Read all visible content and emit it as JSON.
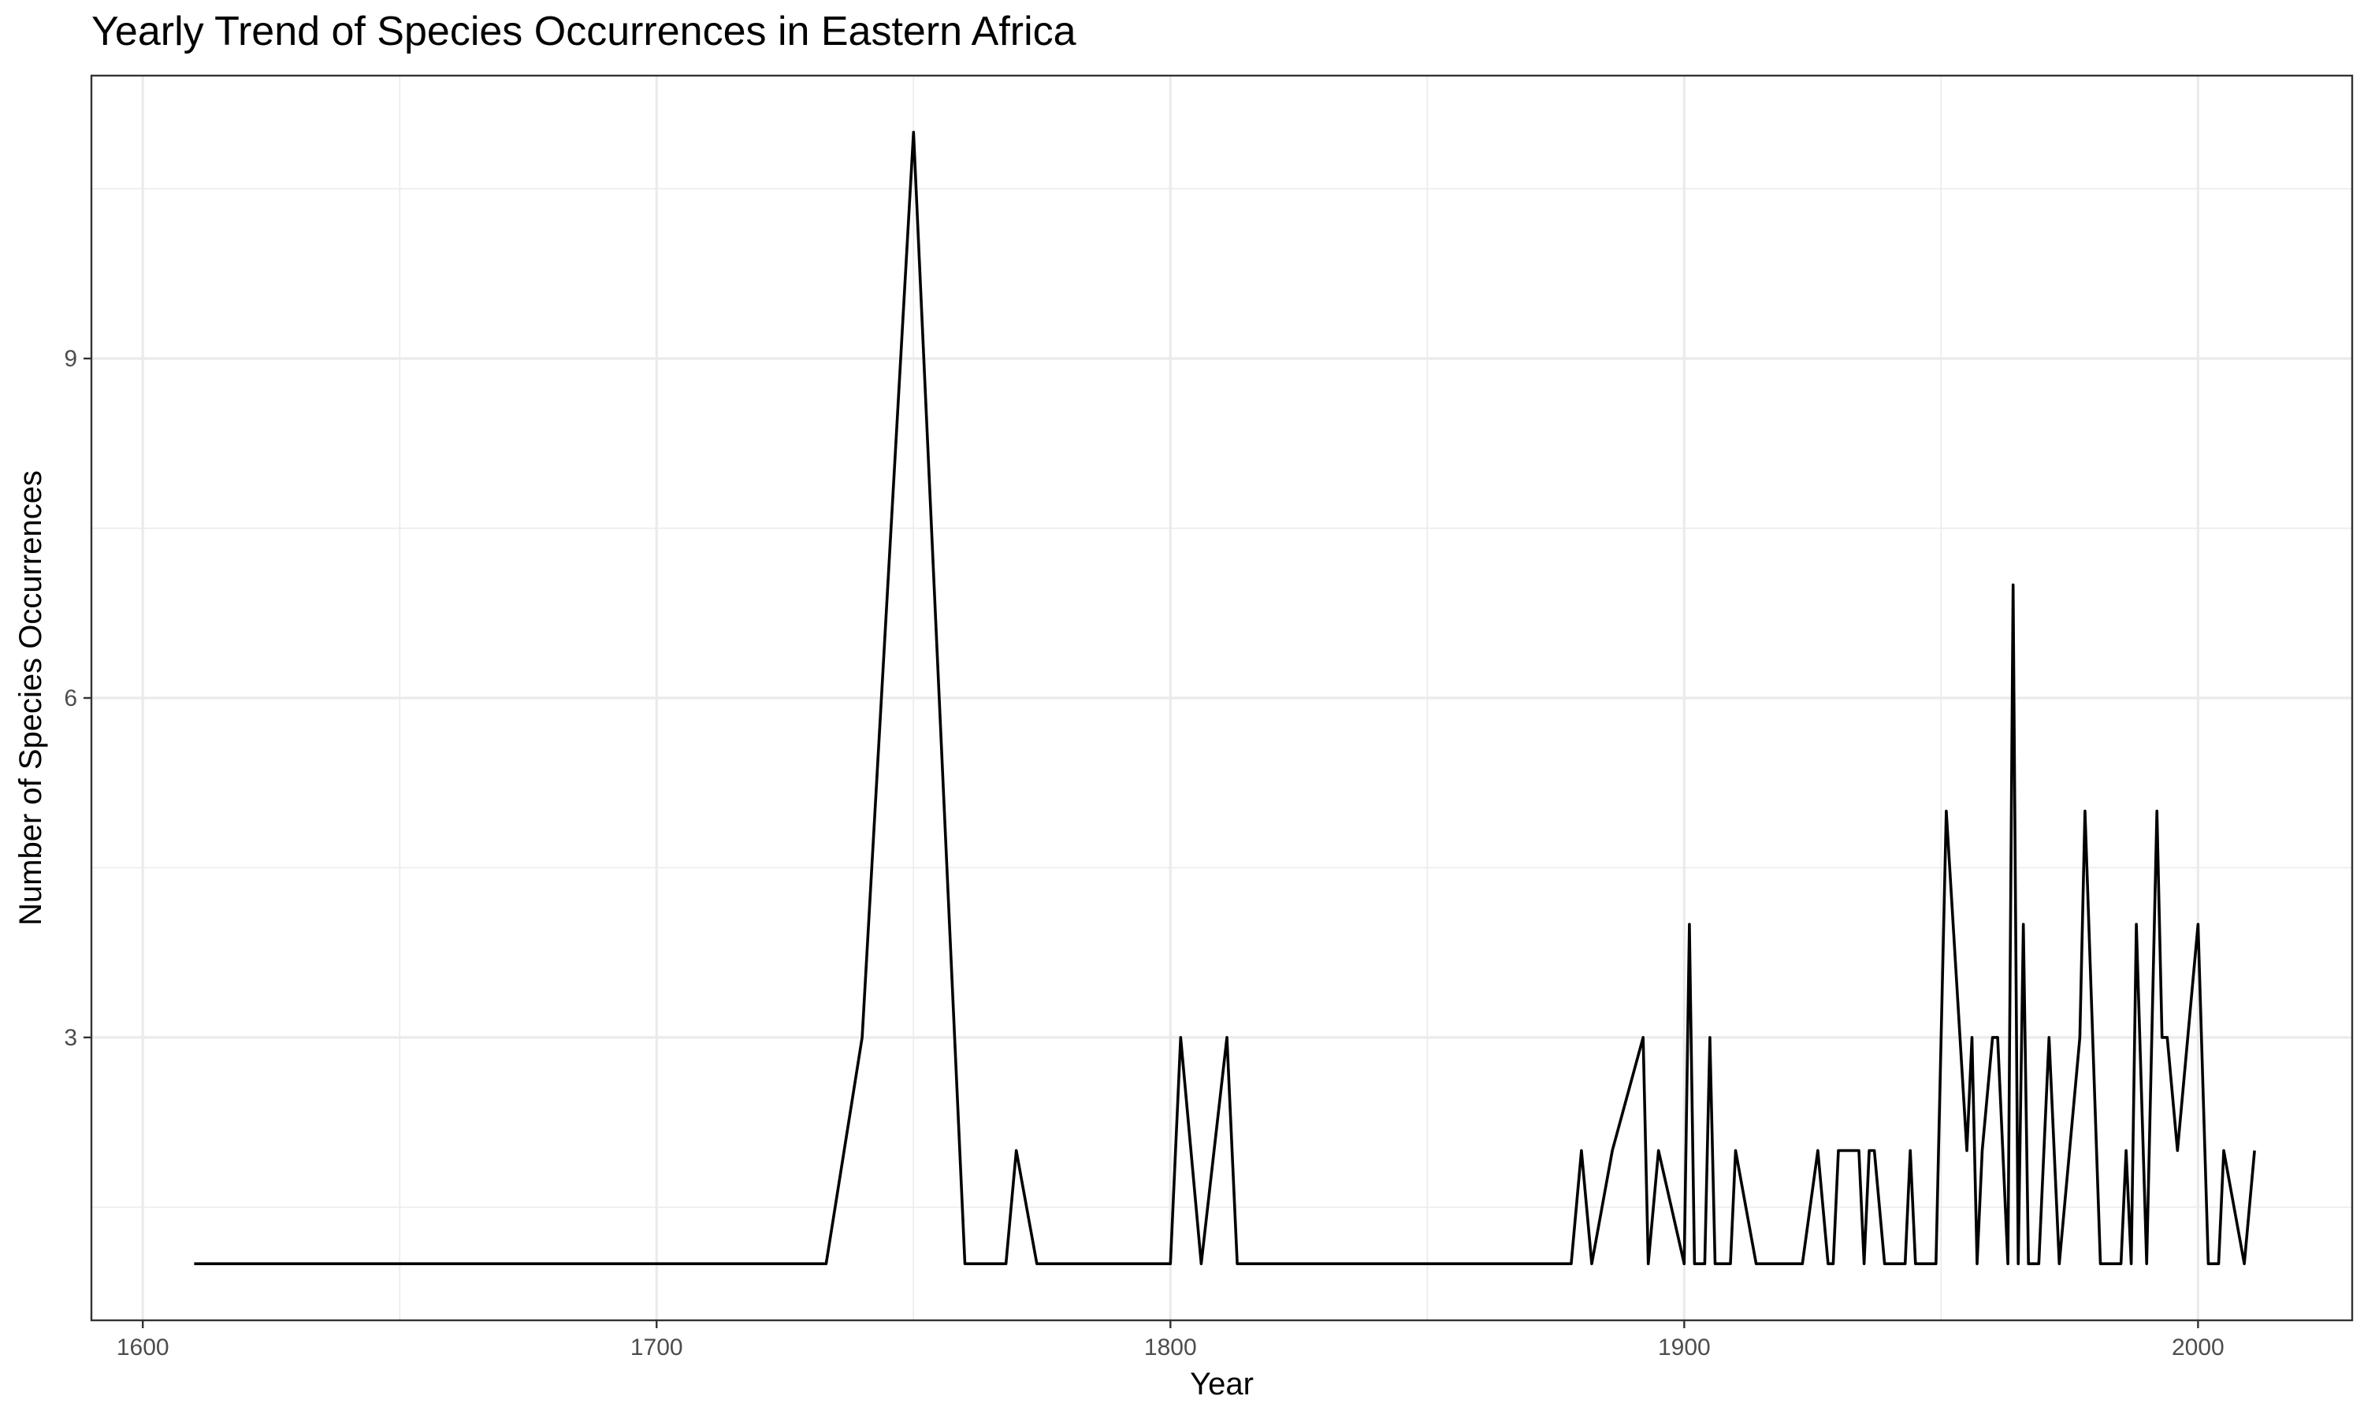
{
  "chart_data": {
    "type": "line",
    "title": "Yearly Trend of Species Occurrences in Eastern Africa",
    "xlabel": "Year",
    "ylabel": "Number of Species Occurrences",
    "xlim": [
      1590,
      2030
    ],
    "ylim": [
      0.5,
      11.5
    ],
    "x_ticks": [
      1600,
      1700,
      1800,
      1900,
      2000
    ],
    "y_ticks": [
      3,
      6,
      9
    ],
    "grid": true,
    "colors": {
      "line": "#000000",
      "grid": "#ebebeb",
      "panel_border": "#333333",
      "background": "#ffffff"
    },
    "series": [
      {
        "x": [
          1610,
          1733,
          1740,
          1750,
          1760,
          1768,
          1770,
          1774,
          1800,
          1802,
          1806,
          1811,
          1813,
          1878,
          1880,
          1882,
          1886,
          1892,
          1893,
          1895,
          1900,
          1901,
          1902,
          1904,
          1905,
          1906,
          1907,
          1909,
          1910,
          1914,
          1923,
          1926,
          1928,
          1929,
          1930,
          1934,
          1935,
          1936,
          1937,
          1939,
          1943,
          1944,
          1945,
          1949,
          1951,
          1955,
          1956,
          1957,
          1958,
          1960,
          1961,
          1963,
          1964,
          1965,
          1966,
          1967,
          1969,
          1971,
          1973,
          1977,
          1978,
          1981,
          1985,
          1986,
          1987,
          1988,
          1990,
          1991,
          1992,
          1993,
          1994,
          1996,
          2000,
          2002,
          2004,
          2005,
          2009,
          2011
        ],
        "y": [
          1,
          1,
          3,
          11,
          1,
          1,
          2,
          1,
          1,
          3,
          1,
          3,
          1,
          1,
          2,
          1,
          2,
          3,
          1,
          2,
          1,
          4,
          1,
          1,
          3,
          1,
          1,
          1,
          2,
          1,
          1,
          2,
          1,
          1,
          2,
          2,
          1,
          2,
          2,
          1,
          1,
          2,
          1,
          1,
          5,
          2,
          3,
          1,
          2,
          3,
          3,
          1,
          7,
          1,
          4,
          1,
          1,
          3,
          1,
          3,
          5,
          1,
          1,
          2,
          1,
          4,
          1,
          3,
          5,
          3,
          3,
          2,
          4,
          1,
          1,
          2,
          1,
          2
        ]
      }
    ]
  }
}
